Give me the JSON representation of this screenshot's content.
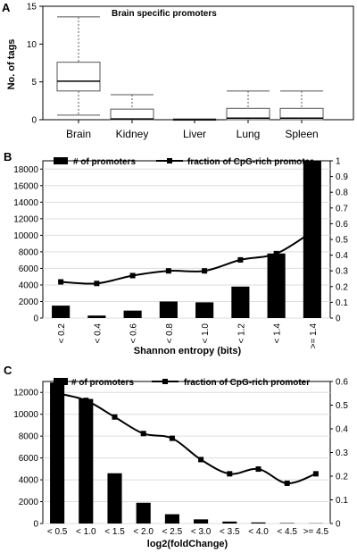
{
  "chart_data": [
    {
      "panel": "A",
      "type": "box",
      "title": "Brain specific promoters",
      "xlabel": "",
      "ylabel": "No. of tags",
      "ylim": [
        0,
        15
      ],
      "yticks": [
        "0",
        "5",
        "10",
        "15"
      ],
      "categories": [
        "Brain",
        "Kidney",
        "Liver",
        "Lung",
        "Spleen"
      ],
      "boxes": [
        {
          "min": 0.6,
          "q1": 3.8,
          "median": 5.1,
          "q3": 7.6,
          "max": 13.6
        },
        {
          "min": 0.0,
          "q1": 0.0,
          "median": 0.1,
          "q3": 1.4,
          "max": 3.3
        },
        {
          "min": 0.0,
          "q1": 0.0,
          "median": 0.0,
          "q3": 0.05,
          "max": 0.1
        },
        {
          "min": 0.0,
          "q1": 0.0,
          "median": 0.2,
          "q3": 1.5,
          "max": 3.8
        },
        {
          "min": 0.0,
          "q1": 0.0,
          "median": 0.2,
          "q3": 1.5,
          "max": 3.8
        }
      ]
    },
    {
      "panel": "B",
      "type": "bar+line",
      "xlabel": "Shannon entropy (bits)",
      "categories": [
        "< 0.2",
        "< 0.4",
        "< 0.6",
        "< 0.8",
        "< 1.0",
        "< 1.2",
        "< 1.4",
        ">= 1.4"
      ],
      "ylim_left": [
        0,
        19000
      ],
      "yticks_left": [
        "0",
        "2000",
        "4000",
        "6000",
        "8000",
        "10000",
        "12000",
        "14000",
        "16000",
        "18000"
      ],
      "ylim_right": [
        0,
        1.0
      ],
      "yticks_right": [
        "0",
        "0.1",
        "0.2",
        "0.3",
        "0.4",
        "0.5",
        "0.6",
        "0.7",
        "0.8",
        "0.9",
        "1"
      ],
      "series": [
        {
          "name": "# of promoters",
          "kind": "bar",
          "axis": "left",
          "values": [
            1500,
            300,
            900,
            2000,
            1900,
            3800,
            7800,
            19500
          ]
        },
        {
          "name": "fraction of CpG-rich promoter",
          "kind": "line",
          "axis": "right",
          "values": [
            0.23,
            0.22,
            0.27,
            0.3,
            0.3,
            0.37,
            0.41,
            0.55
          ]
        }
      ]
    },
    {
      "panel": "C",
      "type": "bar+line",
      "xlabel": "log2(foldChange)",
      "categories": [
        "< 0.5",
        "< 1.0",
        "< 1.5",
        "< 2.0",
        "< 2.5",
        "< 3.0",
        "< 3.5",
        "< 4.0",
        "< 4.5",
        ">= 4.5"
      ],
      "ylim_left": [
        0,
        13000
      ],
      "yticks_left": [
        "0",
        "2000",
        "4000",
        "6000",
        "8000",
        "10000",
        "12000"
      ],
      "ylim_right": [
        0,
        0.6
      ],
      "yticks_right": [
        "0",
        "0.1",
        "0.2",
        "0.3",
        "0.4",
        "0.5",
        "0.6"
      ],
      "series": [
        {
          "name": "# of promoters",
          "kind": "bar",
          "axis": "left",
          "values": [
            12900,
            11400,
            4600,
            1900,
            850,
            380,
            180,
            100,
            40,
            20
          ]
        },
        {
          "name": "fraction of CpG-rich promoter",
          "kind": "line",
          "axis": "right",
          "values": [
            0.55,
            0.52,
            0.45,
            0.38,
            0.36,
            0.27,
            0.21,
            0.23,
            0.17,
            0.21
          ]
        }
      ]
    }
  ]
}
